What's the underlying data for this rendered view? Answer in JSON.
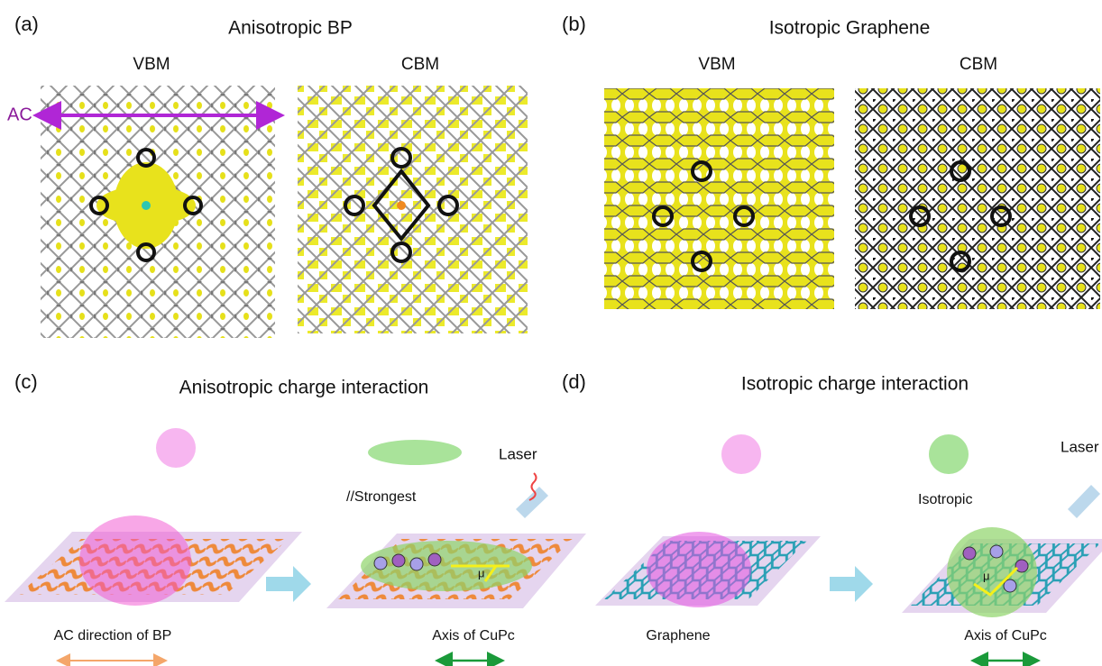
{
  "panels": [
    {
      "label": "(a)",
      "title": "Anisotropic BP",
      "subpanels": [
        "VBM",
        "CBM"
      ],
      "axis_label": "AC"
    },
    {
      "label": "(b)",
      "title": "Isotropic Graphene",
      "subpanels": [
        "VBM",
        "CBM"
      ]
    },
    {
      "label": "(c)",
      "title": "Anisotropic charge interaction",
      "annotations": [
        "//Strongest",
        "Laser",
        "μ"
      ],
      "captions": [
        "AC direction of BP",
        "Axis of CuPc"
      ]
    },
    {
      "label": "(d)",
      "title": "Isotropic charge interaction",
      "annotations": [
        "Isotropic",
        "Laser",
        "μ"
      ],
      "captions": [
        "Graphene",
        "Axis of CuPc"
      ]
    }
  ]
}
